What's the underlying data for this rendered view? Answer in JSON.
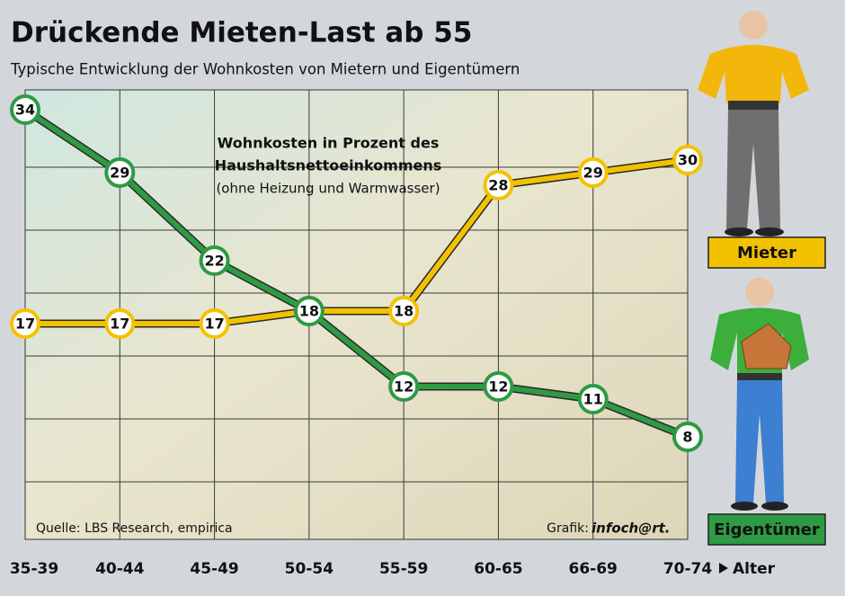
{
  "chart_data": {
    "type": "line",
    "title": "Drückende Mieten-Last ab 55",
    "subtitle": "Typische Entwicklung der Wohnkosten von Mietern und Eigentümern",
    "annotations": [
      "Wohnkosten in Prozent des",
      "Haushaltsnettoeinkommens",
      "(ohne Heizung und Warmwasser)"
    ],
    "categories": [
      "35-39",
      "40-44",
      "45-49",
      "50-54",
      "55-59",
      "60-65",
      "66-69",
      "70-74"
    ],
    "x_label": "Alter",
    "series": [
      {
        "name": "Mieter",
        "color": "#f2c200",
        "values": [
          17,
          17,
          17,
          18,
          18,
          28,
          29,
          30
        ]
      },
      {
        "name": "Eigentümer",
        "color": "#2e9a44",
        "values": [
          34,
          29,
          22,
          18,
          12,
          12,
          11,
          8
        ]
      }
    ],
    "ylim": [
      0,
      36
    ],
    "source": "Quelle: LBS Research, empirica",
    "credit_label": "Grafik:",
    "credit": "infoch@rt."
  }
}
